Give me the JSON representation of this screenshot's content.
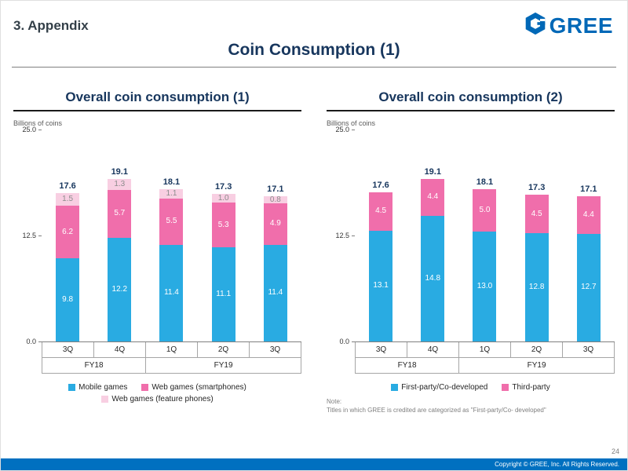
{
  "header": {
    "section": "3. Appendix",
    "logo_text": "GREE",
    "logo_color": "#0068b7"
  },
  "title": "Coin Consumption (1)",
  "chart_data": [
    {
      "type": "bar",
      "stacked": true,
      "title": "Overall coin consumption (1)",
      "ylabel": "Billions of coins",
      "ylim": [
        0,
        25
      ],
      "yticks": [
        0,
        12.5,
        25
      ],
      "grid": false,
      "legend_position": "bottom",
      "categories": [
        "3Q",
        "4Q",
        "1Q",
        "2Q",
        "3Q"
      ],
      "category_groups": [
        {
          "label": "FY18",
          "span": 2
        },
        {
          "label": "FY19",
          "span": 3
        }
      ],
      "series": [
        {
          "name": "Mobile games",
          "color": "#29abe2",
          "values": [
            9.8,
            12.2,
            11.4,
            11.1,
            11.4
          ]
        },
        {
          "name": "Web games (smartphones)",
          "color": "#f06eab",
          "values": [
            6.2,
            5.7,
            5.5,
            5.3,
            4.9
          ]
        },
        {
          "name": "Web games (feature phones)",
          "color": "#f8cfe2",
          "values": [
            1.5,
            1.3,
            1.1,
            1.0,
            0.8
          ]
        }
      ],
      "totals": [
        17.6,
        19.1,
        18.1,
        17.3,
        17.1
      ]
    },
    {
      "type": "bar",
      "stacked": true,
      "title": "Overall coin consumption (2)",
      "ylabel": "Billions of coins",
      "ylim": [
        0,
        25
      ],
      "yticks": [
        0,
        12.5,
        25
      ],
      "grid": false,
      "legend_position": "bottom",
      "categories": [
        "3Q",
        "4Q",
        "1Q",
        "2Q",
        "3Q"
      ],
      "category_groups": [
        {
          "label": "FY18",
          "span": 2
        },
        {
          "label": "FY19",
          "span": 3
        }
      ],
      "series": [
        {
          "name": "First-party/Co-developed",
          "color": "#29abe2",
          "values": [
            13.1,
            14.8,
            13.0,
            12.8,
            12.7
          ]
        },
        {
          "name": "Third-party",
          "color": "#f06eab",
          "values": [
            4.5,
            4.4,
            5.0,
            4.5,
            4.4
          ]
        }
      ],
      "totals": [
        17.6,
        19.1,
        18.1,
        17.3,
        17.1
      ]
    }
  ],
  "note": {
    "label": "Note:",
    "text": "Titles in which GREE is credited are categorized as \"First-party/Co- developed\""
  },
  "footer": {
    "page": "24",
    "copyright": "Copyright © GREE, Inc. All Rights Reserved."
  }
}
